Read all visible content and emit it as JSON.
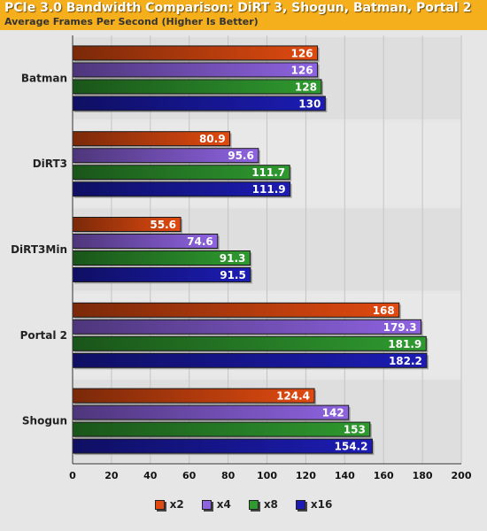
{
  "header": {
    "title": "PCIe 3.0 Bandwidth Comparison: DiRT 3, Shogun, Batman, Portal 2",
    "subtitle": "Average Frames Per Second (Higher Is Better)"
  },
  "chart_data": {
    "type": "bar",
    "orientation": "horizontal",
    "title": "PCIe 3.0 Bandwidth Comparison: DiRT 3, Shogun, Batman, Portal 2",
    "subtitle": "Average Frames Per Second (Higher Is Better)",
    "categories": [
      "Batman",
      "DiRT3",
      "DiRT3Min",
      "Portal 2",
      "Shogun"
    ],
    "series": [
      {
        "name": "x2",
        "values": [
          126,
          80.9,
          55.6,
          168,
          124.4
        ],
        "color": "#e04a10"
      },
      {
        "name": "x4",
        "values": [
          126,
          95.6,
          74.6,
          179.3,
          142
        ],
        "color": "#8e63e0"
      },
      {
        "name": "x8",
        "values": [
          128,
          111.7,
          91.3,
          181.9,
          153
        ],
        "color": "#2f9a2f"
      },
      {
        "name": "x16",
        "values": [
          130,
          111.9,
          91.5,
          182.2,
          154.2
        ],
        "color": "#1c1cb4"
      }
    ],
    "xlim": [
      0,
      200
    ],
    "xticks": [
      0,
      20,
      40,
      60,
      80,
      100,
      120,
      140,
      160,
      180,
      200
    ],
    "grid": true,
    "legend_position": "bottom"
  }
}
